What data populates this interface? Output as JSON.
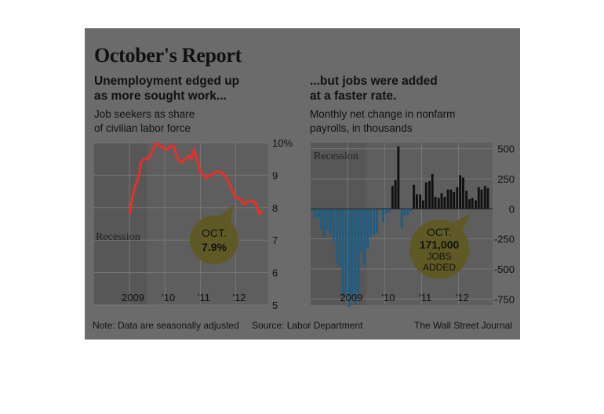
{
  "title": "October's Report",
  "left": {
    "subhead": [
      "Unemployment edged up",
      "as more sought work..."
    ],
    "description": [
      "Job seekers as share",
      "of civilian labor force"
    ],
    "recession_label": "Recession",
    "callout": [
      "OCT.",
      "7.9%"
    ]
  },
  "right": {
    "subhead": [
      "...but jobs were added",
      "at a faster rate."
    ],
    "description": [
      "Monthly net change in nonfarm",
      "payrolls, in thousands"
    ],
    "recession_label": "Recession",
    "callout": [
      "OCT.",
      "171,000",
      "JOBS",
      "ADDED"
    ]
  },
  "footer": {
    "note": "Note: Data are seasonally adjusted",
    "source": "Source: Labor Department",
    "credit": "The Wall Street Journal"
  },
  "colors": {
    "background": "#6b6b6b",
    "plot_area": "#5e5e5e",
    "recession_band": "#575757",
    "unemployment_line": "#e8302a",
    "job_losses": "#1e5d83",
    "job_gains": "#111111",
    "callout": "#5f5a25"
  },
  "chart_data": [
    {
      "type": "line",
      "title": "Unemployment edged up as more sought work...",
      "ylabel": "Job seekers as share of civilian labor force",
      "ylim": [
        5,
        10
      ],
      "yticks": [
        "10%",
        "9",
        "8",
        "7",
        "6",
        "5"
      ],
      "xticks": [
        "2009",
        "'10",
        "'11",
        "'12"
      ],
      "xrange": [
        2008.0,
        2012.92
      ],
      "recession": [
        2008.0,
        2009.5
      ],
      "series": [
        {
          "x": [
            2009.0,
            2009.08,
            2009.17,
            2009.25,
            2009.33,
            2009.42,
            2009.5,
            2009.58,
            2009.67,
            2009.75,
            2009.83,
            2009.92,
            2010.0,
            2010.08,
            2010.17,
            2010.25,
            2010.33,
            2010.42,
            2010.5,
            2010.58,
            2010.67,
            2010.75,
            2010.83,
            2010.92,
            2011.0,
            2011.08,
            2011.17,
            2011.25,
            2011.33,
            2011.42,
            2011.5,
            2011.58,
            2011.67,
            2011.75,
            2011.83,
            2011.92,
            2012.0,
            2012.08,
            2012.17,
            2012.25,
            2012.33,
            2012.42,
            2012.5,
            2012.58,
            2012.67,
            2012.75
          ],
          "values": [
            7.8,
            8.3,
            8.7,
            8.9,
            9.4,
            9.5,
            9.5,
            9.6,
            9.8,
            10.0,
            9.9,
            9.9,
            9.8,
            9.8,
            9.9,
            9.9,
            9.6,
            9.4,
            9.4,
            9.5,
            9.6,
            9.5,
            9.8,
            9.4,
            9.1,
            9.0,
            8.9,
            9.0,
            9.0,
            9.1,
            9.1,
            9.1,
            9.0,
            8.9,
            8.7,
            8.5,
            8.3,
            8.3,
            8.2,
            8.1,
            8.2,
            8.2,
            8.2,
            8.1,
            7.8,
            7.9
          ]
        }
      ],
      "annotation": "OCT. 7.9%"
    },
    {
      "type": "bar",
      "title": "...but jobs were added at a faster rate.",
      "ylabel": "Monthly net change in nonfarm payrolls, in thousands",
      "ylim": [
        -800,
        550
      ],
      "yticks": [
        500,
        250,
        0,
        -250,
        -500,
        -750
      ],
      "xticks": [
        "2009",
        "'10",
        "'11",
        "'12"
      ],
      "xrange": [
        2008.0,
        2012.92
      ],
      "recession": [
        2008.0,
        2009.5
      ],
      "x": [
        2008.0,
        2008.08,
        2008.17,
        2008.25,
        2008.33,
        2008.42,
        2008.5,
        2008.58,
        2008.67,
        2008.75,
        2008.83,
        2008.92,
        2009.0,
        2009.08,
        2009.17,
        2009.25,
        2009.33,
        2009.42,
        2009.5,
        2009.58,
        2009.67,
        2009.75,
        2009.83,
        2009.92,
        2010.0,
        2010.08,
        2010.17,
        2010.25,
        2010.33,
        2010.42,
        2010.5,
        2010.58,
        2010.67,
        2010.75,
        2010.83,
        2010.92,
        2011.0,
        2011.08,
        2011.17,
        2011.25,
        2011.33,
        2011.42,
        2011.5,
        2011.58,
        2011.67,
        2011.75,
        2011.83,
        2011.92,
        2012.0,
        2012.08,
        2012.17,
        2012.25,
        2012.33,
        2012.42,
        2012.5,
        2012.58,
        2012.67,
        2012.75
      ],
      "values": [
        -20,
        -80,
        -80,
        -180,
        -230,
        -170,
        -220,
        -270,
        -450,
        -480,
        -730,
        -700,
        -820,
        -720,
        -800,
        -700,
        -350,
        -470,
        -330,
        -230,
        -220,
        -200,
        -10,
        -110,
        -40,
        -30,
        190,
        240,
        520,
        -160,
        -60,
        -50,
        -20,
        200,
        120,
        120,
        70,
        220,
        230,
        290,
        100,
        90,
        130,
        100,
        160,
        160,
        140,
        180,
        280,
        260,
        150,
        80,
        90,
        70,
        180,
        160,
        190,
        171
      ],
      "annotation": "OCT. 171,000 JOBS ADDED"
    }
  ]
}
